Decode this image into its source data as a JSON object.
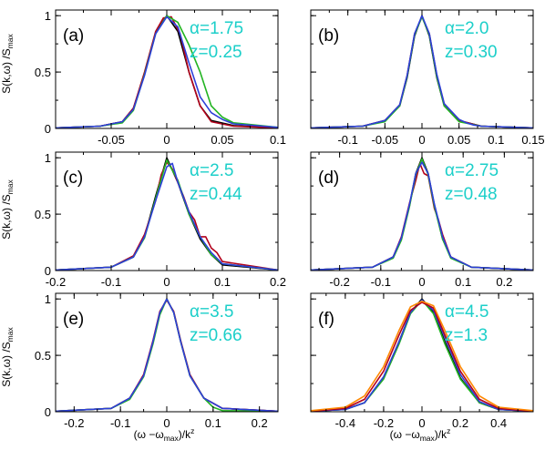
{
  "figure": {
    "shared_ylabel": {
      "main": "S(k,ω) /S",
      "sub": "max"
    },
    "shared_xlabel": {
      "pre": "(ω −ω",
      "sub": "max",
      "post": ")/k",
      "sup": "z"
    }
  },
  "colors": {
    "axis": "#000000",
    "annotation": "#1ccfc9",
    "series_black": "#000000",
    "series_red": "#b3001b",
    "series_green": "#22b422",
    "series_blue": "#2d3fd9",
    "series_orange": "#ff8800"
  },
  "chart_data": [
    {
      "type": "line",
      "panel_label": "(a)",
      "alpha_text": "α=1.75",
      "z_text": "z=0.25",
      "xlim": [
        -0.1,
        0.1
      ],
      "ylim": [
        0,
        1.05
      ],
      "xticks": [
        -0.05,
        0,
        0.05,
        0.1
      ],
      "xtick_labels": [
        "-0.05",
        "0",
        "0.05",
        "0.1"
      ],
      "yticks": [
        0,
        0.5,
        1
      ],
      "ytick_labels": [
        "0",
        "0.5",
        "1"
      ],
      "x_minor": 0.025,
      "y_minor": 0.25,
      "series": [
        {
          "color": "series_black",
          "x": [
            -0.1,
            -0.06,
            -0.04,
            -0.03,
            -0.02,
            -0.01,
            0,
            0.01,
            0.02,
            0.03,
            0.04,
            0.06,
            0.1
          ],
          "y": [
            0.005,
            0.02,
            0.06,
            0.18,
            0.48,
            0.85,
            1.0,
            0.86,
            0.5,
            0.2,
            0.07,
            0.025,
            0.005
          ]
        },
        {
          "color": "series_red",
          "x": [
            -0.1,
            -0.06,
            -0.04,
            -0.03,
            -0.02,
            -0.01,
            -0.003,
            0.004,
            0.012,
            0.02,
            0.03,
            0.04,
            0.06,
            0.1
          ],
          "y": [
            0.005,
            0.02,
            0.06,
            0.18,
            0.5,
            0.86,
            0.98,
            0.99,
            0.84,
            0.5,
            0.2,
            0.06,
            0.02,
            0.005
          ]
        },
        {
          "color": "series_green",
          "x": [
            -0.1,
            -0.06,
            -0.04,
            -0.03,
            -0.02,
            -0.01,
            0,
            0.01,
            0.02,
            0.03,
            0.035,
            0.04,
            0.05,
            0.06,
            0.1
          ],
          "y": [
            0.005,
            0.02,
            0.05,
            0.16,
            0.48,
            0.84,
            1.0,
            0.94,
            0.74,
            0.5,
            0.35,
            0.2,
            0.1,
            0.05,
            0.01
          ]
        },
        {
          "color": "series_blue",
          "x": [
            -0.1,
            -0.06,
            -0.04,
            -0.03,
            -0.02,
            -0.01,
            0,
            0.01,
            0.02,
            0.03,
            0.04,
            0.05,
            0.06,
            0.1
          ],
          "y": [
            0.005,
            0.02,
            0.06,
            0.17,
            0.47,
            0.84,
            0.99,
            0.9,
            0.58,
            0.28,
            0.14,
            0.08,
            0.04,
            0.01
          ]
        }
      ]
    },
    {
      "type": "line",
      "panel_label": "(b)",
      "alpha_text": "α=2.0",
      "z_text": "z=0.30",
      "xlim": [
        -0.15,
        0.15
      ],
      "ylim": [
        0,
        1.05
      ],
      "xticks": [
        -0.1,
        -0.05,
        0,
        0.05,
        0.1,
        0.15
      ],
      "xtick_labels": [
        "-0.1",
        "-0.05",
        "0",
        "0.05",
        "0.1",
        "0.15"
      ],
      "yticks": [
        0,
        0.5,
        1
      ],
      "ytick_labels": [
        "",
        "",
        ""
      ],
      "x_minor": 0.025,
      "y_minor": 0.25,
      "series": [
        {
          "color": "series_black",
          "x": [
            -0.15,
            -0.08,
            -0.05,
            -0.03,
            -0.02,
            -0.01,
            0,
            0.01,
            0.02,
            0.03,
            0.05,
            0.08,
            0.15
          ],
          "y": [
            0.005,
            0.02,
            0.07,
            0.2,
            0.45,
            0.82,
            1.0,
            0.82,
            0.45,
            0.2,
            0.07,
            0.02,
            0.005
          ]
        },
        {
          "color": "series_red",
          "x": [
            -0.15,
            -0.08,
            -0.05,
            -0.03,
            -0.02,
            -0.01,
            0,
            0.01,
            0.02,
            0.03,
            0.05,
            0.08,
            0.15
          ],
          "y": [
            0.005,
            0.02,
            0.07,
            0.21,
            0.47,
            0.84,
            0.99,
            0.84,
            0.47,
            0.22,
            0.07,
            0.02,
            0.005
          ]
        },
        {
          "color": "series_green",
          "x": [
            -0.15,
            -0.08,
            -0.05,
            -0.03,
            -0.02,
            -0.01,
            0,
            0.01,
            0.02,
            0.03,
            0.05,
            0.08,
            0.15
          ],
          "y": [
            0.005,
            0.02,
            0.06,
            0.2,
            0.46,
            0.83,
            0.99,
            0.83,
            0.46,
            0.2,
            0.06,
            0.02,
            0.005
          ]
        },
        {
          "color": "series_blue",
          "x": [
            -0.15,
            -0.08,
            -0.05,
            -0.03,
            -0.02,
            -0.01,
            0,
            0.01,
            0.02,
            0.03,
            0.05,
            0.06,
            0.07,
            0.08,
            0.15
          ],
          "y": [
            0.005,
            0.02,
            0.07,
            0.21,
            0.47,
            0.84,
            1.0,
            0.84,
            0.48,
            0.22,
            0.08,
            0.05,
            0.03,
            0.02,
            0.005
          ]
        }
      ]
    },
    {
      "type": "line",
      "panel_label": "(c)",
      "alpha_text": "α=2.5",
      "z_text": "z=0.44",
      "xlim": [
        -0.2,
        0.2
      ],
      "ylim": [
        0,
        1.05
      ],
      "xticks": [
        -0.2,
        -0.1,
        0,
        0.1,
        0.2
      ],
      "xtick_labels": [
        "-0.2",
        "-0.1",
        "0",
        "0.1",
        "0.2"
      ],
      "yticks": [
        0,
        0.5,
        1
      ],
      "ytick_labels": [
        "0",
        "0.5",
        "1"
      ],
      "x_minor": 0.05,
      "y_minor": 0.25,
      "series": [
        {
          "color": "series_black",
          "x": [
            -0.2,
            -0.1,
            -0.06,
            -0.04,
            -0.02,
            0,
            0.02,
            0.04,
            0.06,
            0.08,
            0.1,
            0.2
          ],
          "y": [
            0.005,
            0.03,
            0.12,
            0.3,
            0.66,
            1.0,
            0.78,
            0.5,
            0.28,
            0.14,
            0.05,
            0.005
          ]
        },
        {
          "color": "series_red",
          "x": [
            -0.2,
            -0.1,
            -0.06,
            -0.04,
            -0.02,
            -0.01,
            0,
            0.01,
            0.02,
            0.03,
            0.04,
            0.05,
            0.06,
            0.07,
            0.08,
            0.09,
            0.1,
            0.2
          ],
          "y": [
            0.005,
            0.03,
            0.13,
            0.32,
            0.62,
            0.85,
            0.96,
            0.9,
            0.78,
            0.66,
            0.52,
            0.45,
            0.3,
            0.3,
            0.2,
            0.16,
            0.08,
            0.005
          ]
        },
        {
          "color": "series_green",
          "x": [
            -0.2,
            -0.1,
            -0.06,
            -0.04,
            -0.02,
            0,
            0.02,
            0.04,
            0.06,
            0.08,
            0.1,
            0.2
          ],
          "y": [
            0.005,
            0.03,
            0.12,
            0.29,
            0.64,
            0.98,
            0.8,
            0.5,
            0.3,
            0.14,
            0.06,
            0.005
          ]
        },
        {
          "color": "series_blue",
          "x": [
            -0.2,
            -0.1,
            -0.06,
            -0.04,
            -0.02,
            0,
            0.01,
            0.02,
            0.04,
            0.06,
            0.08,
            0.1,
            0.2
          ],
          "y": [
            0.005,
            0.03,
            0.12,
            0.3,
            0.62,
            0.92,
            0.95,
            0.78,
            0.52,
            0.3,
            0.16,
            0.06,
            0.005
          ]
        }
      ]
    },
    {
      "type": "line",
      "panel_label": "(d)",
      "alpha_text": "α=2.75",
      "z_text": "z=0.48",
      "xlim": [
        -0.27,
        0.27
      ],
      "ylim": [
        0,
        1.05
      ],
      "xticks": [
        -0.2,
        -0.1,
        0,
        0.1,
        0.2
      ],
      "xtick_labels": [
        "-0.2",
        "-0.1",
        "0",
        "0.1",
        "0.2"
      ],
      "yticks": [
        0,
        0.5,
        1
      ],
      "ytick_labels": [
        "",
        "",
        ""
      ],
      "x_minor": 0.05,
      "y_minor": 0.25,
      "series": [
        {
          "color": "series_black",
          "x": [
            -0.27,
            -0.12,
            -0.07,
            -0.05,
            -0.03,
            -0.015,
            0,
            0.015,
            0.03,
            0.05,
            0.07,
            0.12,
            0.27
          ],
          "y": [
            0.005,
            0.03,
            0.12,
            0.28,
            0.58,
            0.86,
            1.0,
            0.86,
            0.58,
            0.28,
            0.12,
            0.03,
            0.005
          ]
        },
        {
          "color": "series_red",
          "x": [
            -0.27,
            -0.12,
            -0.07,
            -0.05,
            -0.03,
            -0.015,
            -0.005,
            0.005,
            0.015,
            0.03,
            0.04,
            0.05,
            0.06,
            0.07,
            0.12,
            0.27
          ],
          "y": [
            0.005,
            0.03,
            0.12,
            0.3,
            0.6,
            0.8,
            0.95,
            0.86,
            0.84,
            0.55,
            0.45,
            0.32,
            0.22,
            0.12,
            0.03,
            0.005
          ]
        },
        {
          "color": "series_green",
          "x": [
            -0.27,
            -0.12,
            -0.07,
            -0.05,
            -0.03,
            -0.015,
            0,
            0.015,
            0.03,
            0.05,
            0.07,
            0.12,
            0.27
          ],
          "y": [
            0.005,
            0.03,
            0.11,
            0.27,
            0.57,
            0.85,
            0.99,
            0.85,
            0.57,
            0.28,
            0.11,
            0.03,
            0.005
          ]
        },
        {
          "color": "series_blue",
          "x": [
            -0.27,
            -0.12,
            -0.07,
            -0.05,
            -0.03,
            -0.015,
            0,
            0.015,
            0.03,
            0.05,
            0.07,
            0.12,
            0.27
          ],
          "y": [
            0.005,
            0.03,
            0.12,
            0.29,
            0.59,
            0.86,
            0.96,
            0.86,
            0.59,
            0.3,
            0.12,
            0.03,
            0.005
          ]
        }
      ]
    },
    {
      "type": "line",
      "panel_label": "(e)",
      "alpha_text": "α=3.5",
      "z_text": "z=0.66",
      "xlim": [
        -0.24,
        0.24
      ],
      "ylim": [
        0,
        1.05
      ],
      "xticks": [
        -0.2,
        -0.1,
        0,
        0.1,
        0.2
      ],
      "xtick_labels": [
        "-0.2",
        "-0.1",
        "0",
        "0.1",
        "0.2"
      ],
      "yticks": [
        0,
        0.5,
        1
      ],
      "ytick_labels": [
        "0",
        "0.5",
        "1"
      ],
      "x_minor": 0.05,
      "y_minor": 0.25,
      "series": [
        {
          "color": "series_black",
          "x": [
            -0.24,
            -0.12,
            -0.08,
            -0.05,
            -0.03,
            -0.015,
            0,
            0.015,
            0.03,
            0.05,
            0.08,
            0.12,
            0.24
          ],
          "y": [
            0.005,
            0.03,
            0.12,
            0.32,
            0.62,
            0.88,
            1.0,
            0.88,
            0.62,
            0.32,
            0.12,
            0.03,
            0.005
          ]
        },
        {
          "color": "series_red",
          "x": [
            -0.24,
            -0.12,
            -0.08,
            -0.05,
            -0.03,
            -0.015,
            0,
            0.015,
            0.03,
            0.05,
            0.08,
            0.12,
            0.24
          ],
          "y": [
            0.005,
            0.03,
            0.12,
            0.33,
            0.63,
            0.89,
            0.99,
            0.89,
            0.63,
            0.33,
            0.12,
            0.03,
            0.005
          ]
        },
        {
          "color": "series_green",
          "x": [
            -0.24,
            -0.12,
            -0.08,
            -0.05,
            -0.03,
            -0.015,
            0,
            0.015,
            0.03,
            0.05,
            0.08,
            0.1,
            0.12,
            0.24
          ],
          "y": [
            0.005,
            0.03,
            0.11,
            0.31,
            0.6,
            0.86,
            1.0,
            0.88,
            0.62,
            0.32,
            0.12,
            0.04,
            0.01,
            0.005
          ]
        },
        {
          "color": "series_blue",
          "x": [
            -0.24,
            -0.12,
            -0.08,
            -0.05,
            -0.03,
            -0.015,
            0,
            0.015,
            0.03,
            0.05,
            0.08,
            0.12,
            0.24
          ],
          "y": [
            0.005,
            0.03,
            0.12,
            0.32,
            0.62,
            0.88,
            1.0,
            0.88,
            0.62,
            0.32,
            0.12,
            0.03,
            0.005
          ]
        }
      ]
    },
    {
      "type": "line",
      "panel_label": "(f)",
      "alpha_text": "α=4.5",
      "z_text": "z=1.3",
      "xlim": [
        -0.58,
        0.58
      ],
      "ylim": [
        0,
        1.05
      ],
      "xticks": [
        -0.4,
        -0.2,
        0,
        0.2,
        0.4
      ],
      "xtick_labels": [
        "-0.4",
        "-0.2",
        "0",
        "0.2",
        "0.4"
      ],
      "yticks": [
        0,
        0.5,
        1
      ],
      "ytick_labels": [
        "",
        "",
        ""
      ],
      "x_minor": 0.1,
      "y_minor": 0.25,
      "series": [
        {
          "color": "series_black",
          "x": [
            -0.58,
            -0.4,
            -0.3,
            -0.2,
            -0.12,
            -0.06,
            0,
            0.06,
            0.12,
            0.2,
            0.3,
            0.4,
            0.58
          ],
          "y": [
            0.005,
            0.02,
            0.08,
            0.3,
            0.62,
            0.88,
            1.0,
            0.88,
            0.62,
            0.3,
            0.08,
            0.02,
            0.005
          ]
        },
        {
          "color": "series_green",
          "x": [
            -0.58,
            -0.4,
            -0.3,
            -0.2,
            -0.12,
            -0.06,
            0,
            0.06,
            0.12,
            0.2,
            0.3,
            0.4,
            0.58
          ],
          "y": [
            0.005,
            0.02,
            0.08,
            0.29,
            0.6,
            0.87,
            0.99,
            0.87,
            0.6,
            0.29,
            0.08,
            0.02,
            0.005
          ]
        },
        {
          "color": "series_blue",
          "x": [
            -0.58,
            -0.4,
            -0.3,
            -0.2,
            -0.12,
            -0.06,
            0,
            0.06,
            0.12,
            0.2,
            0.3,
            0.4,
            0.58
          ],
          "y": [
            0.005,
            0.02,
            0.08,
            0.31,
            0.62,
            0.88,
            0.99,
            0.9,
            0.66,
            0.33,
            0.09,
            0.02,
            0.005
          ]
        },
        {
          "color": "series_red",
          "x": [
            -0.58,
            -0.4,
            -0.3,
            -0.2,
            -0.12,
            -0.06,
            0,
            0.06,
            0.12,
            0.2,
            0.3,
            0.4,
            0.58
          ],
          "y": [
            0.005,
            0.03,
            0.11,
            0.36,
            0.68,
            0.9,
            0.97,
            0.92,
            0.68,
            0.36,
            0.11,
            0.03,
            0.005
          ]
        },
        {
          "color": "series_orange",
          "x": [
            -0.58,
            -0.4,
            -0.3,
            -0.2,
            -0.12,
            -0.06,
            0,
            0.06,
            0.12,
            0.2,
            0.3,
            0.4,
            0.58
          ],
          "y": [
            0.01,
            0.04,
            0.14,
            0.4,
            0.72,
            0.93,
            0.98,
            0.94,
            0.72,
            0.4,
            0.14,
            0.04,
            0.01
          ]
        }
      ]
    }
  ]
}
